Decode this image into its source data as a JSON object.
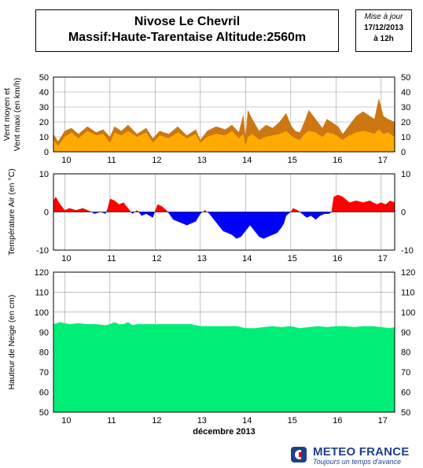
{
  "header": {
    "title_line1": "Nivose Le Chevril",
    "title_line2": "Massif:Haute-Tarentaise Altitude:2560m",
    "update_label": "Mise à jour",
    "update_date": "17/12/2013",
    "update_hour": "à 12h"
  },
  "logo": {
    "name": "METEO FRANCE",
    "tagline": "Toujours un temps d'avance"
  },
  "colors": {
    "wind_max": "#cc7711",
    "wind_mean": "#ffaa00",
    "temp_pos": "#ff0000",
    "temp_neg": "#0000ff",
    "snow": "#00ee77",
    "grid": "#999999"
  },
  "chart_data": [
    {
      "type": "area",
      "id": "wind",
      "ylabel": "Vent moyen et\nVent maxi (en km/h)",
      "ylim": [
        0,
        50
      ],
      "yticks": [
        0,
        10,
        20,
        30,
        40,
        50
      ],
      "xlim": [
        9.75,
        17.3
      ],
      "xticks": [
        "10",
        "11",
        "12",
        "13",
        "14",
        "15",
        "16",
        "17"
      ],
      "grid": true,
      "series": [
        {
          "role": "max",
          "x": [
            9.75,
            9.85,
            10.0,
            10.15,
            10.3,
            10.5,
            10.7,
            10.85,
            11.0,
            11.1,
            11.25,
            11.4,
            11.6,
            11.8,
            11.95,
            12.1,
            12.3,
            12.5,
            12.7,
            12.9,
            13.0,
            13.15,
            13.35,
            13.55,
            13.7,
            13.85,
            13.95,
            14.0,
            14.05,
            14.15,
            14.3,
            14.45,
            14.6,
            14.75,
            14.9,
            15.0,
            15.1,
            15.2,
            15.3,
            15.4,
            15.55,
            15.7,
            15.8,
            15.95,
            16.05,
            16.15,
            16.3,
            16.45,
            16.6,
            16.75,
            16.85,
            16.95,
            17.05,
            17.15,
            17.3
          ],
          "values": [
            12,
            7,
            14,
            16,
            12,
            17,
            13,
            15,
            10,
            17,
            14,
            18,
            12,
            16,
            9,
            14,
            12,
            17,
            11,
            15,
            8,
            14,
            17,
            15,
            18,
            13,
            25,
            10,
            28,
            22,
            14,
            18,
            16,
            20,
            26,
            18,
            14,
            13,
            20,
            28,
            22,
            16,
            22,
            19,
            17,
            12,
            18,
            24,
            27,
            24,
            22,
            36,
            24,
            22,
            20
          ]
        },
        {
          "role": "mean",
          "x": [
            9.75,
            9.85,
            10.0,
            10.15,
            10.3,
            10.5,
            10.7,
            10.85,
            11.0,
            11.1,
            11.25,
            11.4,
            11.6,
            11.8,
            11.95,
            12.1,
            12.3,
            12.5,
            12.7,
            12.9,
            13.0,
            13.15,
            13.35,
            13.55,
            13.7,
            13.85,
            13.95,
            14.0,
            14.05,
            14.15,
            14.3,
            14.45,
            14.6,
            14.75,
            14.9,
            15.0,
            15.1,
            15.2,
            15.3,
            15.4,
            15.55,
            15.7,
            15.8,
            15.95,
            16.05,
            16.15,
            16.3,
            16.45,
            16.6,
            16.75,
            16.85,
            16.95,
            17.05,
            17.15,
            17.3
          ],
          "values": [
            8,
            4,
            10,
            13,
            9,
            14,
            11,
            12,
            6,
            13,
            11,
            14,
            10,
            13,
            6,
            11,
            9,
            13,
            9,
            12,
            6,
            10,
            12,
            11,
            14,
            9,
            12,
            4,
            10,
            12,
            8,
            10,
            11,
            12,
            14,
            11,
            9,
            8,
            12,
            14,
            13,
            10,
            13,
            12,
            10,
            8,
            11,
            13,
            14,
            13,
            12,
            15,
            12,
            13,
            10
          ]
        }
      ]
    },
    {
      "type": "area",
      "id": "temperature",
      "ylabel": "Température Air (en °C)",
      "ylim": [
        -10,
        10
      ],
      "yticks": [
        -10,
        0,
        10
      ],
      "xlim": [
        9.75,
        17.3
      ],
      "xticks": [
        "10",
        "11",
        "12",
        "13",
        "14",
        "15",
        "16",
        "17"
      ],
      "grid": true,
      "series": [
        {
          "role": "temperature",
          "x": [
            9.75,
            9.8,
            9.9,
            10.0,
            10.1,
            10.25,
            10.4,
            10.5,
            10.6,
            10.65,
            10.8,
            10.9,
            10.95,
            11.0,
            11.1,
            11.2,
            11.3,
            11.4,
            11.5,
            11.6,
            11.7,
            11.8,
            11.95,
            12.05,
            12.15,
            12.25,
            12.4,
            12.5,
            12.6,
            12.7,
            12.8,
            12.9,
            13.0,
            13.1,
            13.2,
            13.3,
            13.4,
            13.5,
            13.6,
            13.7,
            13.8,
            13.9,
            14.0,
            14.1,
            14.2,
            14.3,
            14.4,
            14.5,
            14.6,
            14.7,
            14.8,
            14.85,
            14.9,
            15.0,
            15.05,
            15.15,
            15.25,
            15.35,
            15.45,
            15.55,
            15.65,
            15.75,
            15.85,
            15.9,
            15.95,
            16.05,
            16.15,
            16.3,
            16.45,
            16.6,
            16.75,
            16.9,
            17.0,
            17.1,
            17.2,
            17.3
          ],
          "values": [
            3,
            4,
            2,
            0.5,
            1,
            0.5,
            1,
            0.5,
            0,
            -0.5,
            0,
            -0.5,
            1,
            3.5,
            3,
            2,
            2.5,
            1,
            -0.5,
            0.5,
            -1,
            -0.5,
            -1.5,
            2,
            1.5,
            0.5,
            -2,
            -2.5,
            -3,
            -3.5,
            -3,
            -2.5,
            -0.5,
            0.5,
            -0.5,
            -2,
            -3.5,
            -5,
            -5.5,
            -6,
            -7,
            -6.5,
            -5,
            -3.5,
            -5,
            -6.5,
            -7,
            -6.5,
            -6,
            -5.5,
            -4,
            -3,
            -1,
            0,
            1,
            0.5,
            -0.5,
            -1.5,
            -1,
            -2,
            -1,
            -0.5,
            -0.5,
            0,
            4,
            4.5,
            4,
            2.5,
            3,
            2.5,
            3,
            2,
            2.5,
            2,
            3,
            2.5
          ]
        }
      ]
    },
    {
      "type": "area",
      "id": "snow",
      "ylabel": "Hauteur de Neige (en cm)",
      "xlabel": "décembre 2013",
      "ylim": [
        50,
        120
      ],
      "yticks": [
        50,
        60,
        70,
        80,
        90,
        100,
        110,
        120
      ],
      "xlim": [
        9.75,
        17.3
      ],
      "xticks": [
        "10",
        "11",
        "12",
        "13",
        "14",
        "15",
        "16",
        "17"
      ],
      "grid": true,
      "series": [
        {
          "role": "snow-depth",
          "x": [
            9.75,
            9.9,
            10.1,
            10.3,
            10.5,
            10.7,
            10.9,
            11.0,
            11.1,
            11.2,
            11.3,
            11.4,
            11.5,
            11.6,
            11.8,
            12.0,
            12.2,
            12.4,
            12.6,
            12.8,
            13.0,
            13.2,
            13.4,
            13.6,
            13.8,
            13.9,
            14.0,
            14.2,
            14.4,
            14.6,
            14.8,
            15.0,
            15.2,
            15.4,
            15.6,
            15.8,
            16.0,
            16.2,
            16.4,
            16.6,
            16.8,
            17.0,
            17.2,
            17.3
          ],
          "values": [
            94,
            95,
            94,
            94.5,
            94,
            94,
            93.5,
            94,
            95,
            94,
            94,
            95,
            93.5,
            94,
            94,
            94,
            94,
            94,
            94,
            94,
            93,
            93,
            93,
            93,
            93,
            92.5,
            92,
            92,
            92.5,
            93,
            92.5,
            93,
            92,
            92.5,
            93,
            92.5,
            93,
            93,
            92.5,
            93,
            93,
            92.5,
            92,
            92.5
          ]
        }
      ]
    }
  ]
}
